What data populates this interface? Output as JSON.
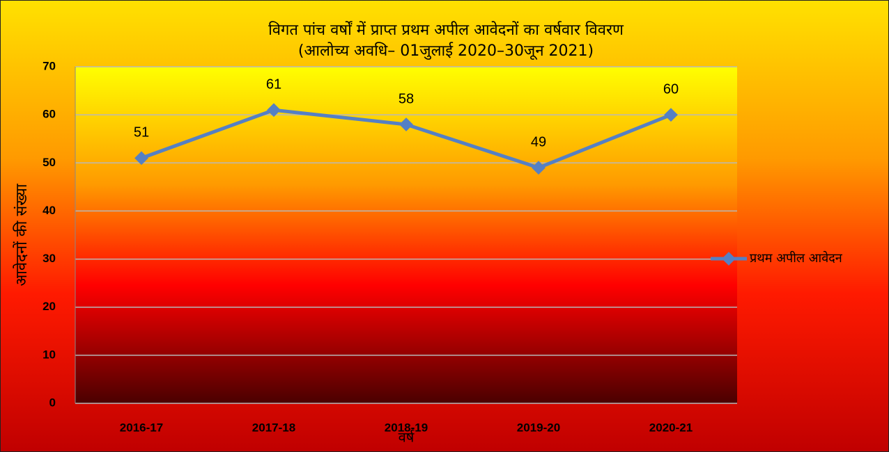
{
  "chart_data": {
    "type": "line",
    "title": "विगत पांच वर्षों  में प्राप्त प्रथम अपील आवेदनों का वर्षवार विवरण",
    "subtitle": "(आलोच्य अवधि– 01जुलाई 2020–30जून 2021)",
    "y_label": "आवेदनों की संख्या",
    "x_label": "वर्ष",
    "categories": [
      "2016-17",
      "2017-18",
      "2018-19",
      "2019-20",
      "2020-21"
    ],
    "series": [
      {
        "name": "प्रथम अपील आवेदन",
        "color": "#5580c4",
        "values": [
          51,
          61,
          58,
          49,
          60
        ]
      }
    ],
    "ylim": [
      0,
      70
    ],
    "yticks": [
      0,
      10,
      20,
      30,
      40,
      50,
      60,
      70
    ],
    "grid": true,
    "legend": "right"
  }
}
